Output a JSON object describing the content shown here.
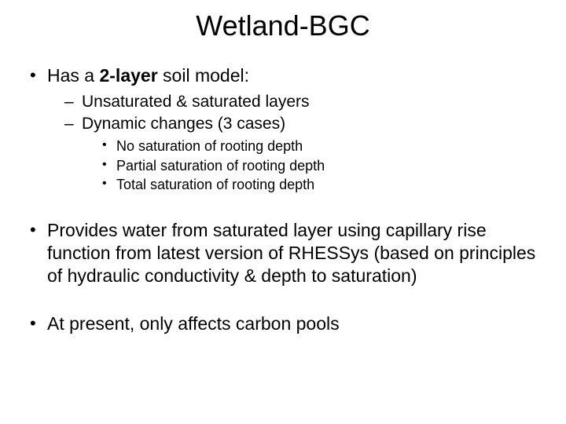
{
  "title": "Wetland-BGC",
  "bullets": {
    "b1_pre": "Has a ",
    "b1_bold": "2-layer",
    "b1_post": " soil model:",
    "b1_sub1": "Unsaturated & saturated layers",
    "b1_sub2": "Dynamic changes (3 cases)",
    "b1_sub2_a": "No saturation of rooting depth",
    "b1_sub2_b": "Partial saturation of rooting depth",
    "b1_sub2_c": "Total saturation of rooting depth",
    "b2": "Provides water from saturated layer using capillary rise function from latest version of RHESSys (based on principles of hydraulic conductivity & depth to saturation)",
    "b3": "At present, only affects carbon pools"
  },
  "style": {
    "background_color": "#ffffff",
    "text_color": "#000000",
    "title_fontsize": 36,
    "level1_fontsize": 23,
    "level2_fontsize": 21,
    "level3_fontsize": 18,
    "font_family": "Arial"
  }
}
